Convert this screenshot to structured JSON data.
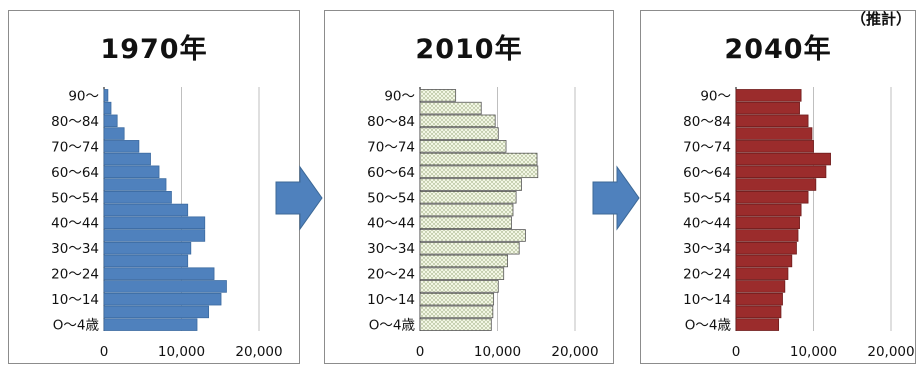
{
  "note_label": "（推計）",
  "colors": {
    "c1970": "#4f81bd",
    "c2010": "#f2f6e4",
    "c2040": "#9b2c2c",
    "arrow": "#4f81bd"
  },
  "chart_data": [
    {
      "type": "bar",
      "orientation": "horizontal",
      "title": "1970年",
      "categories": [
        "0～4歳",
        "5～9",
        "10～14",
        "15～19",
        "20～24",
        "25～29",
        "30～34",
        "35～39",
        "40～44",
        "45～49",
        "50～54",
        "55～59",
        "60～64",
        "65～69",
        "70～74",
        "75～79",
        "80～84",
        "85～89",
        "90～"
      ],
      "values": [
        12000,
        13500,
        15100,
        15800,
        14200,
        10800,
        11200,
        13000,
        13000,
        10800,
        8700,
        8000,
        7100,
        6000,
        4500,
        2600,
        1700,
        900,
        500
      ],
      "shown_category_labels": [
        "O～4歳",
        "10～14",
        "20～24",
        "30～34",
        "40～44",
        "50～54",
        "60～64",
        "70～74",
        "80～84",
        "90～"
      ],
      "xticks": [
        "0",
        "10,000",
        "20,000"
      ],
      "xlim": [
        0,
        20000
      ],
      "grid": true
    },
    {
      "type": "bar",
      "orientation": "horizontal",
      "title": "2010年",
      "categories": [
        "0～4歳",
        "5～9",
        "10～14",
        "15～19",
        "20～24",
        "25～29",
        "30～34",
        "35～39",
        "40～44",
        "45～49",
        "50～54",
        "55～59",
        "60～64",
        "65～69",
        "70～74",
        "75～79",
        "80～84",
        "85～89",
        "90～"
      ],
      "values": [
        9200,
        9400,
        9500,
        10100,
        10800,
        11300,
        12800,
        13600,
        11800,
        12000,
        12400,
        13100,
        15200,
        15100,
        11100,
        10100,
        9700,
        7900,
        4600
      ],
      "shown_category_labels": [
        "O～4歳",
        "10～14",
        "20～24",
        "30～34",
        "40～44",
        "50～54",
        "60～64",
        "70～74",
        "80～84",
        "90～"
      ],
      "xticks": [
        "0",
        "10,000",
        "20,000"
      ],
      "xlim": [
        0,
        20000
      ],
      "grid": true
    },
    {
      "type": "bar",
      "orientation": "horizontal",
      "title": "2040年",
      "categories": [
        "0～4歳",
        "5～9",
        "10～14",
        "15～19",
        "20～24",
        "25～29",
        "30～34",
        "35～39",
        "40～44",
        "45～49",
        "50～54",
        "55～59",
        "60～64",
        "65～69",
        "70～74",
        "75～79",
        "80～84",
        "85～89",
        "90～"
      ],
      "values": [
        5500,
        5800,
        6000,
        6300,
        6700,
        7200,
        7800,
        8000,
        8200,
        8400,
        9300,
        10300,
        11600,
        12200,
        10000,
        9800,
        9300,
        8200,
        8400
      ],
      "shown_category_labels": [
        "O～4歳",
        "10～14",
        "20～24",
        "30～34",
        "40～44",
        "50～54",
        "60～64",
        "70～74",
        "80～84",
        "90～"
      ],
      "xticks": [
        "0",
        "10,000",
        "20,000"
      ],
      "xlim": [
        0,
        20000
      ],
      "grid": true
    }
  ]
}
